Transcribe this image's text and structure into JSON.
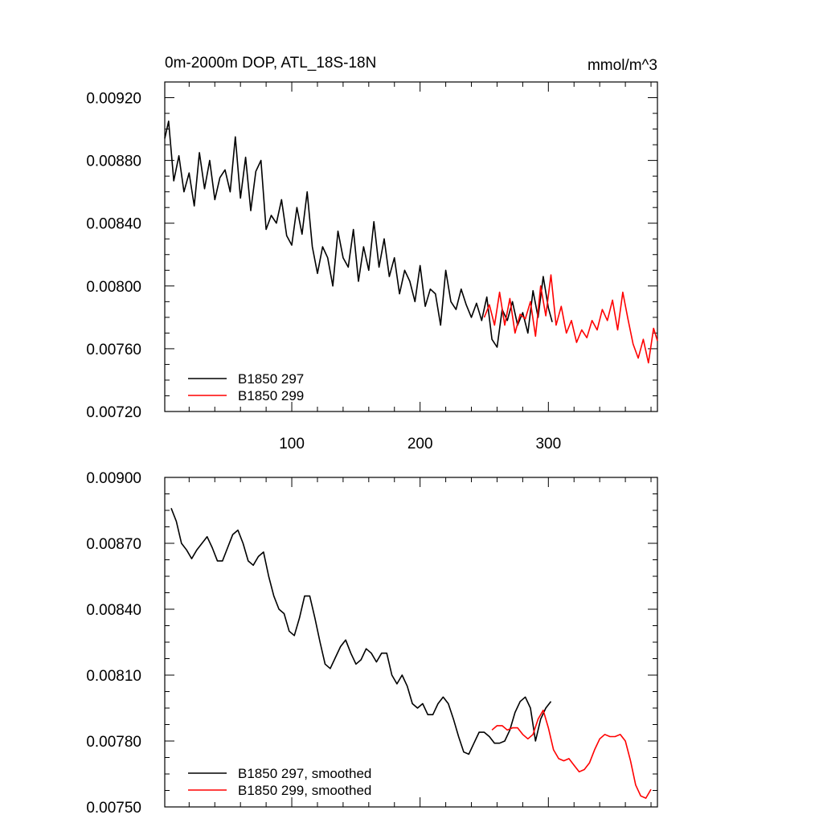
{
  "chart_data": [
    {
      "type": "line",
      "title": "0m-2000m DOP, ATL_18S-18N",
      "units": "mmol/m^3",
      "xlabel": "",
      "ylabel": "",
      "xlim": [
        1,
        385
      ],
      "ylim": [
        0.0072,
        0.0093
      ],
      "xticks": [
        100,
        200,
        300
      ],
      "xtick_labels": [
        "100",
        "200",
        "300"
      ],
      "yticks": [
        0.0072,
        0.0076,
        0.008,
        0.0084,
        0.0088,
        0.0092
      ],
      "ytick_labels": [
        "0.00720",
        "0.00760",
        "0.00800",
        "0.00840",
        "0.00880",
        "0.00920"
      ],
      "grid": false,
      "legend_position": "bottom-left",
      "series": [
        {
          "name": "B1850 297",
          "color": "#000000",
          "x": [
            1,
            4,
            8,
            12,
            16,
            20,
            24,
            28,
            32,
            36,
            40,
            44,
            48,
            52,
            56,
            60,
            64,
            68,
            72,
            76,
            80,
            84,
            88,
            92,
            96,
            100,
            104,
            108,
            112,
            116,
            120,
            124,
            128,
            132,
            136,
            140,
            144,
            148,
            152,
            156,
            160,
            164,
            168,
            172,
            176,
            180,
            184,
            188,
            192,
            196,
            200,
            204,
            208,
            212,
            216,
            220,
            224,
            228,
            232,
            236,
            240,
            244,
            248,
            252,
            256,
            260,
            264,
            268,
            272,
            276,
            280,
            284,
            288,
            292,
            296,
            300,
            303
          ],
          "values": [
            0.00894,
            0.00905,
            0.00867,
            0.00883,
            0.0086,
            0.00872,
            0.00851,
            0.00885,
            0.00862,
            0.0088,
            0.00855,
            0.00869,
            0.00874,
            0.0086,
            0.00895,
            0.00856,
            0.00882,
            0.00848,
            0.00873,
            0.0088,
            0.00836,
            0.00845,
            0.0084,
            0.00855,
            0.00832,
            0.00826,
            0.0085,
            0.00833,
            0.0086,
            0.00825,
            0.00808,
            0.00825,
            0.00818,
            0.008,
            0.00835,
            0.00818,
            0.00812,
            0.00836,
            0.00803,
            0.00825,
            0.0081,
            0.00841,
            0.00812,
            0.0083,
            0.00806,
            0.00818,
            0.00795,
            0.0081,
            0.00803,
            0.0079,
            0.00813,
            0.00787,
            0.00798,
            0.00795,
            0.00775,
            0.0081,
            0.0079,
            0.00785,
            0.00798,
            0.00788,
            0.0078,
            0.00789,
            0.00778,
            0.00793,
            0.00766,
            0.00761,
            0.00785,
            0.00778,
            0.0079,
            0.00775,
            0.00783,
            0.0077,
            0.00797,
            0.0078,
            0.00806,
            0.00786,
            0.00777
          ]
        },
        {
          "name": "B1850 299",
          "color": "#ff0000",
          "x": [
            250,
            254,
            258,
            262,
            266,
            270,
            274,
            278,
            282,
            286,
            290,
            294,
            298,
            302,
            306,
            310,
            314,
            318,
            322,
            326,
            330,
            334,
            338,
            342,
            346,
            350,
            354,
            358,
            362,
            366,
            370,
            374,
            378,
            382,
            385
          ],
          "values": [
            0.0078,
            0.00788,
            0.00775,
            0.00796,
            0.00775,
            0.00792,
            0.0077,
            0.00782,
            0.00779,
            0.0079,
            0.00768,
            0.008,
            0.00781,
            0.00807,
            0.00775,
            0.00787,
            0.0077,
            0.00778,
            0.00764,
            0.00772,
            0.00767,
            0.00778,
            0.00772,
            0.00785,
            0.00778,
            0.00791,
            0.00772,
            0.00796,
            0.00779,
            0.00763,
            0.00754,
            0.00766,
            0.00751,
            0.00773,
            0.00765
          ]
        }
      ]
    },
    {
      "type": "line",
      "title": "",
      "xlabel": "",
      "ylabel": "",
      "xlim": [
        1,
        385
      ],
      "ylim": [
        0.0075,
        0.009
      ],
      "xticks": [
        100,
        200,
        300
      ],
      "xtick_labels": [],
      "yticks": [
        0.0075,
        0.0078,
        0.0081,
        0.0084,
        0.0087,
        0.009
      ],
      "ytick_labels": [
        "0.00750",
        "0.00780",
        "0.00810",
        "0.00840",
        "0.00870",
        "0.00900"
      ],
      "grid": false,
      "legend_position": "bottom-left",
      "series": [
        {
          "name": "B1850 297, smoothed",
          "color": "#000000",
          "x": [
            6,
            10,
            14,
            18,
            22,
            26,
            30,
            34,
            38,
            42,
            46,
            50,
            54,
            58,
            62,
            66,
            70,
            74,
            78,
            82,
            86,
            90,
            94,
            98,
            102,
            106,
            110,
            114,
            118,
            122,
            126,
            130,
            134,
            138,
            142,
            146,
            150,
            154,
            158,
            162,
            166,
            170,
            174,
            178,
            182,
            186,
            190,
            194,
            198,
            202,
            206,
            210,
            214,
            218,
            222,
            226,
            230,
            234,
            238,
            242,
            246,
            250,
            254,
            258,
            262,
            266,
            270,
            274,
            278,
            282,
            286,
            290,
            294,
            298,
            302
          ],
          "values": [
            0.00886,
            0.0088,
            0.0087,
            0.00867,
            0.00863,
            0.00867,
            0.0087,
            0.00873,
            0.00868,
            0.00862,
            0.00862,
            0.00868,
            0.00874,
            0.00876,
            0.0087,
            0.00862,
            0.0086,
            0.00864,
            0.00866,
            0.00855,
            0.00846,
            0.0084,
            0.00838,
            0.0083,
            0.00828,
            0.00836,
            0.00846,
            0.00846,
            0.00836,
            0.00825,
            0.00815,
            0.00813,
            0.00818,
            0.00823,
            0.00826,
            0.0082,
            0.00815,
            0.00817,
            0.00822,
            0.0082,
            0.00816,
            0.0082,
            0.0082,
            0.0081,
            0.00806,
            0.0081,
            0.00805,
            0.00797,
            0.00795,
            0.00797,
            0.00792,
            0.00792,
            0.00797,
            0.008,
            0.00797,
            0.0079,
            0.00782,
            0.00775,
            0.00774,
            0.00779,
            0.00784,
            0.00784,
            0.00782,
            0.00779,
            0.00779,
            0.0078,
            0.00785,
            0.00793,
            0.00798,
            0.008,
            0.00795,
            0.0078,
            0.0079,
            0.00795,
            0.00798
          ]
        },
        {
          "name": "B1850 299, smoothed",
          "color": "#ff0000",
          "x": [
            256,
            260,
            264,
            268,
            272,
            276,
            280,
            284,
            288,
            292,
            296,
            300,
            304,
            308,
            312,
            316,
            320,
            324,
            328,
            332,
            336,
            340,
            344,
            348,
            352,
            356,
            360,
            364,
            368,
            372,
            376,
            380
          ],
          "values": [
            0.00785,
            0.00787,
            0.00787,
            0.00785,
            0.00786,
            0.00786,
            0.00783,
            0.00781,
            0.00783,
            0.0079,
            0.00794,
            0.00786,
            0.00776,
            0.00772,
            0.00771,
            0.00772,
            0.00769,
            0.00766,
            0.00767,
            0.0077,
            0.00776,
            0.00781,
            0.00783,
            0.00782,
            0.00782,
            0.00783,
            0.0078,
            0.00771,
            0.0076,
            0.00755,
            0.00754,
            0.00758
          ]
        }
      ]
    }
  ]
}
